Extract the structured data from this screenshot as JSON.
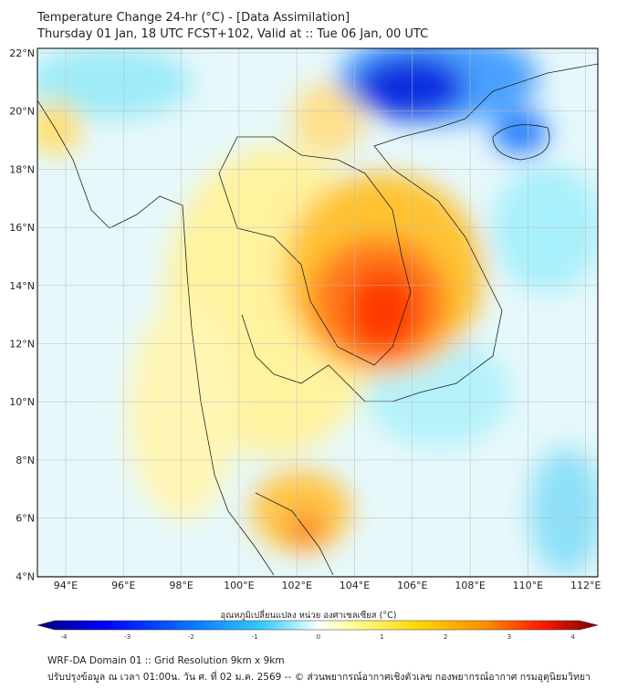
{
  "header": {
    "title": "Temperature Change 24-hr (°C) - [Data Assimilation]",
    "subtitle": "Thursday 01 Jan, 18 UTC FCST+102, Valid at :: Tue 06 Jan, 00 UTC"
  },
  "map": {
    "lon_ticks": [
      "94°E",
      "96°E",
      "98°E",
      "100°E",
      "102°E",
      "104°E",
      "106°E",
      "108°E",
      "110°E",
      "112°E"
    ],
    "lat_ticks": [
      "22°N",
      "20°N",
      "18°N",
      "16°N",
      "14°N",
      "12°N",
      "10°N",
      "8°N",
      "6°N",
      "4°N"
    ]
  },
  "colorbar": {
    "title": "อุณหภูมิเปลี่ยนแปลง หน่วย องศาเซลเซียส (°C)",
    "ticks": [
      "-4",
      "-3",
      "-2",
      "-1",
      "0",
      "1",
      "2",
      "3",
      "4"
    ],
    "colors": [
      "#00007a",
      "#0000ff",
      "#0a78ff",
      "#33ccff",
      "#ccf5ff",
      "#ffffff",
      "#ffff99",
      "#ffd700",
      "#ff8c00",
      "#ff1a00",
      "#7a0000"
    ]
  },
  "footer": {
    "line1": "WRF-DA Domain 01 :: Grid Resolution 9km x 9km",
    "line2": "ปรับปรุงข้อมูล ณ เวลา 01:00น. วัน ศ. ที่ 02 ม.ค. 2569 -- © ส่วนพยากรณ์อากาศเชิงตัวเลข กองพยากรณ์อากาศ กรมอุตุนิยมวิทยา"
  }
}
